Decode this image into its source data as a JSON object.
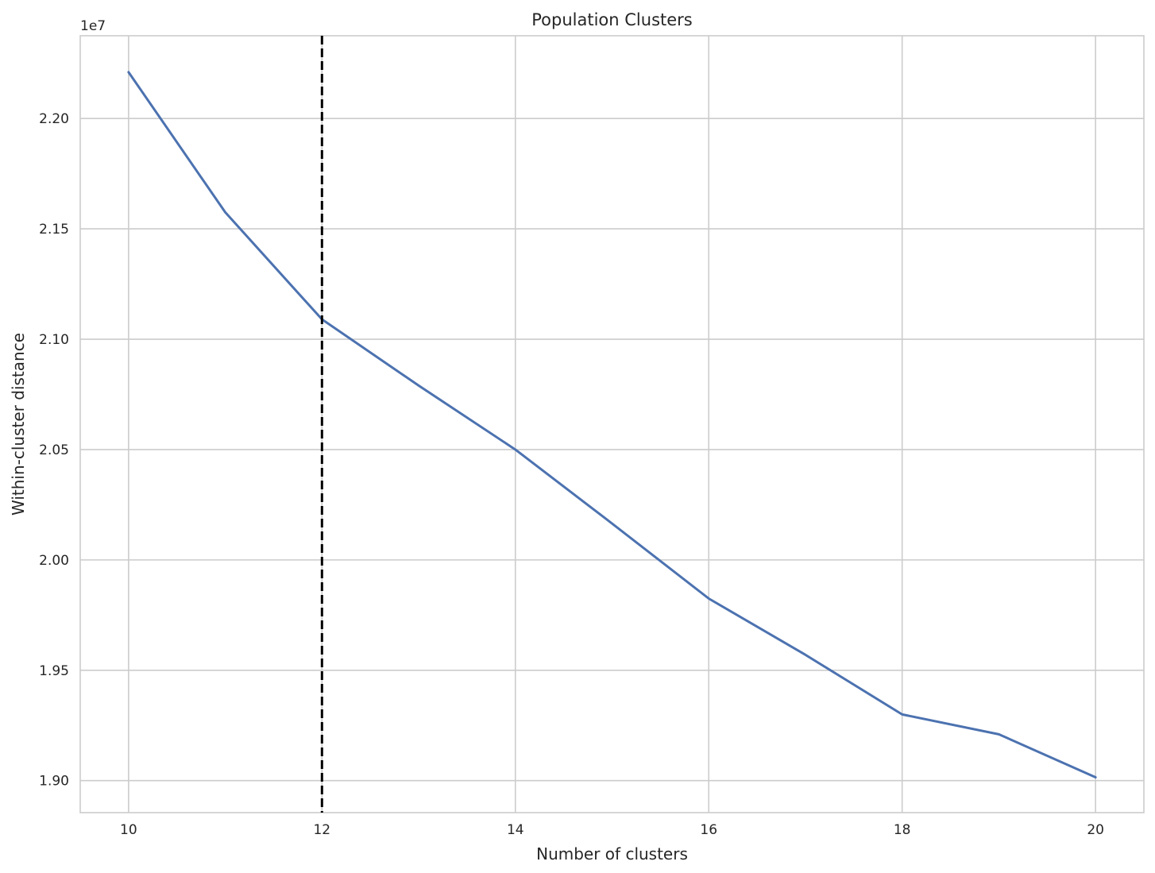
{
  "chart_data": {
    "type": "line",
    "title": "Population Clusters",
    "xlabel": "Number of clusters",
    "ylabel": "Within-cluster distance",
    "y_offset_label": "1e7",
    "xlim": [
      9.5,
      20.5
    ],
    "ylim": [
      1.8855,
      2.2375
    ],
    "x_ticks": [
      10,
      12,
      14,
      16,
      18,
      20
    ],
    "x_tick_labels": [
      "10",
      "12",
      "14",
      "16",
      "18",
      "20"
    ],
    "y_ticks": [
      1.9,
      1.95,
      2.0,
      2.05,
      2.1,
      2.15,
      2.2
    ],
    "y_tick_labels": [
      "1.90",
      "1.95",
      "2.00",
      "2.05",
      "2.10",
      "2.15",
      "2.20"
    ],
    "grid": true,
    "series": [
      {
        "color": "#4c72b0",
        "x": [
          10,
          11,
          12,
          13,
          14,
          15,
          16,
          17,
          18,
          19,
          20
        ],
        "y": [
          2.221,
          2.1575,
          2.109,
          2.079,
          2.05,
          2.0165,
          1.9825,
          1.957,
          1.93,
          1.921,
          1.9015
        ]
      }
    ],
    "vline": {
      "x": 12,
      "color": "#000000",
      "style": "dashed"
    }
  }
}
